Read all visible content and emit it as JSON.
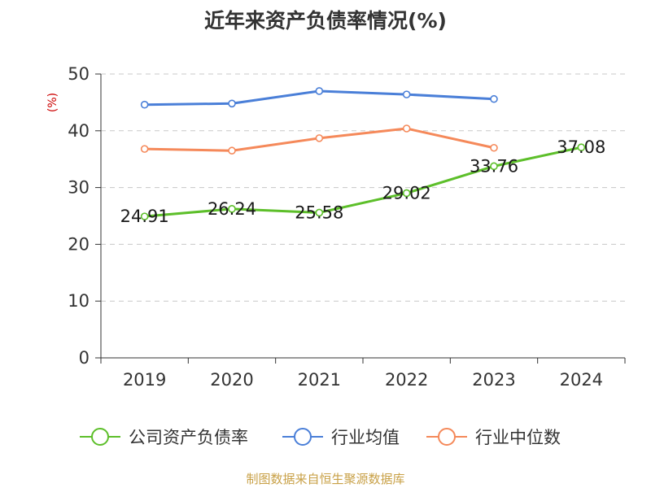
{
  "chart_data": {
    "type": "line",
    "title": "近年来资产负债率情况(%)",
    "ylabel": "(%)",
    "xlabel": "",
    "categories": [
      "2019",
      "2020",
      "2021",
      "2022",
      "2023",
      "2024"
    ],
    "ylim": [
      0,
      50
    ],
    "yticks": [
      0,
      10,
      20,
      30,
      40,
      50
    ],
    "grid": true,
    "legend_position": "bottom",
    "series": [
      {
        "name": "公司资产负债率",
        "color": "#5dbf2a",
        "values": [
          24.91,
          26.24,
          25.58,
          29.02,
          33.76,
          37.08
        ],
        "data_labels": [
          "24.91",
          "26.24",
          "25.58",
          "29.02",
          "33.76",
          "37.08"
        ]
      },
      {
        "name": "行业均值",
        "color": "#4a7fd8",
        "values": [
          44.6,
          44.8,
          47.0,
          46.4,
          45.6,
          null
        ]
      },
      {
        "name": "行业中位数",
        "color": "#f5895a",
        "values": [
          36.8,
          36.5,
          38.7,
          40.4,
          37.0,
          null
        ]
      }
    ]
  },
  "source": "制图数据来自恒生聚源数据库"
}
